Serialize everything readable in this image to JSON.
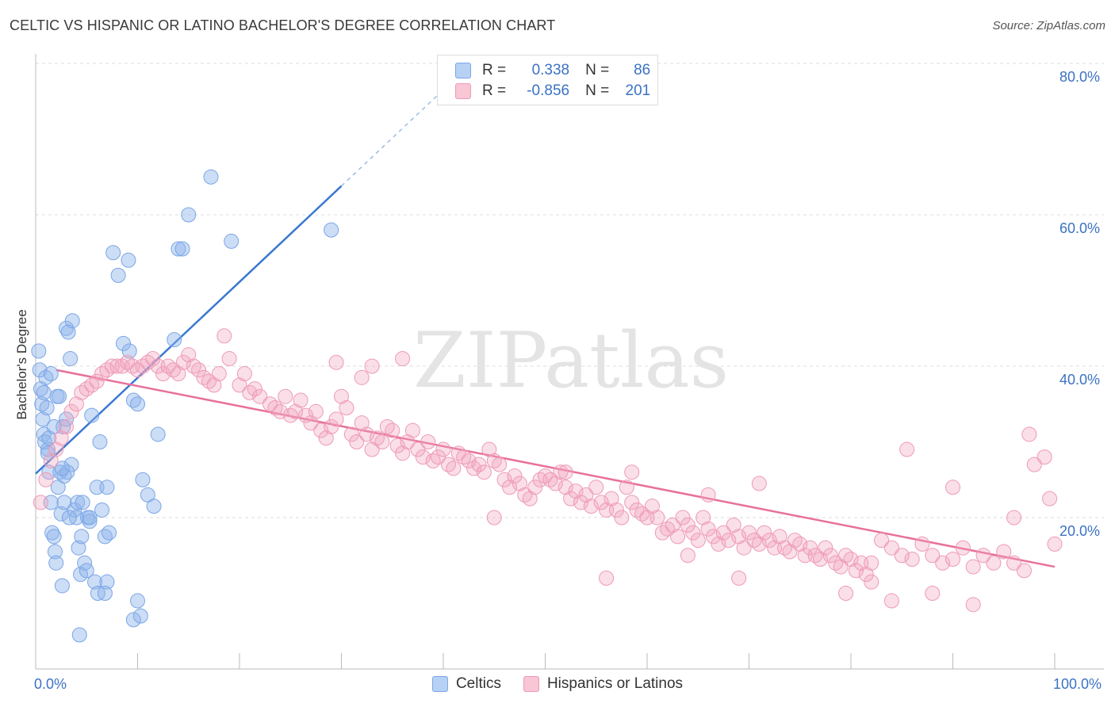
{
  "title": "CELTIC VS HISPANIC OR LATINO BACHELOR'S DEGREE CORRELATION CHART",
  "source": "Source: ZipAtlas.com",
  "watermark": "ZIPatlas",
  "legend": {
    "rows": [
      {
        "r_label": "R =",
        "r_value": "0.338",
        "n_label": "N =",
        "n_value": "86",
        "color": "#6f9fe0"
      },
      {
        "r_label": "R =",
        "r_value": "-0.856",
        "n_label": "N =",
        "n_value": "201",
        "color": "#ee8fae"
      }
    ]
  },
  "bottom_legend": [
    "Celtics",
    "Hispanics or Latinos"
  ],
  "chart_data": {
    "type": "scatter",
    "title": "CELTIC VS HISPANIC OR LATINO BACHELOR'S DEGREE CORRELATION CHART",
    "xlabel": "",
    "ylabel": "Bachelor's Degree",
    "xlim": [
      0,
      100
    ],
    "ylim": [
      0,
      85
    ],
    "x_tick_labels": [
      "0.0%",
      "100.0%"
    ],
    "y_ticks": [
      20,
      40,
      60,
      80
    ],
    "y_tick_labels": [
      "20.0%",
      "40.0%",
      "60.0%",
      "80.0%"
    ],
    "grid": "horizontal dashed",
    "legend_position": "top-center",
    "series": [
      {
        "name": "Celtics",
        "color": "#8fb4ea",
        "trend": {
          "x": [
            0,
            30
          ],
          "y": [
            25.8,
            63.8
          ],
          "dashed_to": [
            40,
            76.5
          ]
        },
        "points": [
          [
            0.3,
            42
          ],
          [
            0.4,
            39.5
          ],
          [
            0.5,
            37
          ],
          [
            0.6,
            35
          ],
          [
            0.7,
            33
          ],
          [
            0.8,
            31
          ],
          [
            0.9,
            30
          ],
          [
            1,
            38.5
          ],
          [
            1.1,
            34.5
          ],
          [
            1.2,
            29
          ],
          [
            1.3,
            26
          ],
          [
            1.5,
            22
          ],
          [
            1.6,
            18
          ],
          [
            1.8,
            17.5
          ],
          [
            1.9,
            15.5
          ],
          [
            2,
            14
          ],
          [
            2.1,
            36
          ],
          [
            2.2,
            24
          ],
          [
            2.4,
            26
          ],
          [
            2.5,
            20.5
          ],
          [
            2.6,
            11
          ],
          [
            2.8,
            25.5
          ],
          [
            3,
            33
          ],
          [
            3,
            45
          ],
          [
            3.2,
            44.5
          ],
          [
            3.4,
            41
          ],
          [
            3.6,
            46
          ],
          [
            3.8,
            21
          ],
          [
            4,
            20
          ],
          [
            4.2,
            16
          ],
          [
            4.4,
            12.5
          ],
          [
            2.8,
            22
          ],
          [
            3.5,
            27
          ],
          [
            4.5,
            17.5
          ],
          [
            4.8,
            14
          ],
          [
            5,
            13
          ],
          [
            5.1,
            20
          ],
          [
            5.3,
            19.5
          ],
          [
            5.5,
            33.5
          ],
          [
            5.8,
            11.5
          ],
          [
            6,
            24
          ],
          [
            6.3,
            30
          ],
          [
            6.5,
            21
          ],
          [
            6.8,
            17.5
          ],
          [
            7,
            24
          ],
          [
            7.2,
            18
          ],
          [
            1.2,
            28.5
          ],
          [
            0.8,
            36.5
          ],
          [
            1.5,
            39
          ],
          [
            2.3,
            36
          ],
          [
            2.7,
            32
          ],
          [
            3.1,
            26
          ],
          [
            4.1,
            22
          ],
          [
            4.6,
            22
          ],
          [
            5.3,
            20
          ],
          [
            6.1,
            10
          ],
          [
            7,
            11.5
          ],
          [
            4.3,
            4.5
          ],
          [
            9.6,
            6.5
          ],
          [
            10,
            9
          ],
          [
            10.3,
            7
          ],
          [
            7.6,
            55
          ],
          [
            8.1,
            52
          ],
          [
            9.1,
            54
          ],
          [
            8.6,
            43
          ],
          [
            9.2,
            42
          ],
          [
            9.6,
            35.5
          ],
          [
            10,
            35
          ],
          [
            10.5,
            25
          ],
          [
            11,
            23
          ],
          [
            11.6,
            21.5
          ],
          [
            12,
            31
          ],
          [
            13.6,
            43.5
          ],
          [
            14,
            55.5
          ],
          [
            14.4,
            55.5
          ],
          [
            15,
            60
          ],
          [
            17.2,
            65
          ],
          [
            19.2,
            56.5
          ],
          [
            29,
            58
          ],
          [
            1.3,
            30.5
          ],
          [
            1.8,
            32
          ],
          [
            2.6,
            26.5
          ],
          [
            3.3,
            20
          ],
          [
            6.8,
            10
          ]
        ]
      },
      {
        "name": "Hispanics or Latinos",
        "color": "#f2a3bd",
        "trend": {
          "x": [
            2,
            100
          ],
          "y": [
            39.5,
            13.5
          ]
        },
        "points": [
          [
            0.5,
            22
          ],
          [
            1,
            25
          ],
          [
            1.5,
            27.5
          ],
          [
            2,
            29
          ],
          [
            2.5,
            30.5
          ],
          [
            3,
            32
          ],
          [
            3.5,
            34
          ],
          [
            4,
            35
          ],
          [
            4.5,
            36.5
          ],
          [
            5,
            37
          ],
          [
            5.5,
            37.5
          ],
          [
            6,
            38
          ],
          [
            6.5,
            39
          ],
          [
            7,
            39.5
          ],
          [
            7.5,
            40
          ],
          [
            8,
            40
          ],
          [
            8.5,
            40
          ],
          [
            9,
            40.5
          ],
          [
            9.5,
            40
          ],
          [
            10,
            39.5
          ],
          [
            10.5,
            40
          ],
          [
            11,
            40.5
          ],
          [
            11.5,
            41
          ],
          [
            12,
            40
          ],
          [
            12.5,
            39
          ],
          [
            13,
            40
          ],
          [
            13.5,
            39.5
          ],
          [
            14,
            39
          ],
          [
            14.5,
            40.5
          ],
          [
            15,
            41.5
          ],
          [
            15.5,
            40
          ],
          [
            16,
            39.5
          ],
          [
            16.5,
            38.5
          ],
          [
            17,
            38
          ],
          [
            17.5,
            37.5
          ],
          [
            18,
            39
          ],
          [
            18.5,
            44
          ],
          [
            19,
            41
          ],
          [
            20,
            37.5
          ],
          [
            20.5,
            39
          ],
          [
            21,
            36.5
          ],
          [
            21.5,
            37
          ],
          [
            22,
            36
          ],
          [
            23,
            35
          ],
          [
            23.5,
            34.5
          ],
          [
            24,
            34
          ],
          [
            24.5,
            36
          ],
          [
            25,
            33.5
          ],
          [
            25.5,
            34
          ],
          [
            26,
            35.5
          ],
          [
            26.5,
            33.5
          ],
          [
            27,
            32.5
          ],
          [
            27.5,
            34
          ],
          [
            28,
            31.5
          ],
          [
            28.5,
            30.5
          ],
          [
            29,
            32
          ],
          [
            29.5,
            33
          ],
          [
            30,
            36
          ],
          [
            30.5,
            34.5
          ],
          [
            31,
            31
          ],
          [
            31.5,
            30
          ],
          [
            32,
            32.5
          ],
          [
            32.5,
            31
          ],
          [
            33,
            29
          ],
          [
            33.5,
            30.5
          ],
          [
            34,
            30
          ],
          [
            34.5,
            32
          ],
          [
            35,
            31.5
          ],
          [
            35.5,
            29.5
          ],
          [
            36,
            28.5
          ],
          [
            36.5,
            30
          ],
          [
            37,
            31.5
          ],
          [
            37.5,
            29
          ],
          [
            38,
            28
          ],
          [
            38.5,
            30
          ],
          [
            39,
            27.5
          ],
          [
            39.5,
            28
          ],
          [
            40,
            29
          ],
          [
            40.5,
            27
          ],
          [
            41,
            26.5
          ],
          [
            41.5,
            28.5
          ],
          [
            42,
            28
          ],
          [
            42.5,
            27.5
          ],
          [
            43,
            26.5
          ],
          [
            43.5,
            27
          ],
          [
            44,
            26
          ],
          [
            44.5,
            29
          ],
          [
            45,
            27.5
          ],
          [
            45.5,
            27
          ],
          [
            46,
            25
          ],
          [
            46.5,
            24
          ],
          [
            47,
            25.5
          ],
          [
            47.5,
            24.5
          ],
          [
            48,
            23
          ],
          [
            48.5,
            22.5
          ],
          [
            49,
            24
          ],
          [
            49.5,
            25
          ],
          [
            50,
            25.5
          ],
          [
            50.5,
            25
          ],
          [
            51,
            24.5
          ],
          [
            51.5,
            26
          ],
          [
            52,
            24
          ],
          [
            52.5,
            22.5
          ],
          [
            53,
            23.5
          ],
          [
            53.5,
            22
          ],
          [
            54,
            23
          ],
          [
            54.5,
            21.5
          ],
          [
            55,
            24
          ],
          [
            55.5,
            22
          ],
          [
            56,
            21
          ],
          [
            56.5,
            22.5
          ],
          [
            57,
            21
          ],
          [
            57.5,
            20
          ],
          [
            58,
            24
          ],
          [
            58.5,
            22
          ],
          [
            59,
            21
          ],
          [
            59.5,
            20.5
          ],
          [
            60,
            20
          ],
          [
            60.5,
            21.5
          ],
          [
            61,
            20
          ],
          [
            61.5,
            18
          ],
          [
            62,
            18.5
          ],
          [
            62.5,
            19
          ],
          [
            63,
            17.5
          ],
          [
            63.5,
            20
          ],
          [
            64,
            19
          ],
          [
            64.5,
            18
          ],
          [
            65,
            17
          ],
          [
            65.5,
            20
          ],
          [
            66,
            18.5
          ],
          [
            66.5,
            17.5
          ],
          [
            67,
            16.5
          ],
          [
            67.5,
            18
          ],
          [
            68,
            17
          ],
          [
            68.5,
            19
          ],
          [
            69,
            17.5
          ],
          [
            69.5,
            16
          ],
          [
            70,
            18
          ],
          [
            70.5,
            17
          ],
          [
            71,
            16.5
          ],
          [
            71.5,
            18
          ],
          [
            72,
            17
          ],
          [
            72.5,
            16
          ],
          [
            73,
            17.5
          ],
          [
            73.5,
            16
          ],
          [
            74,
            15.5
          ],
          [
            74.5,
            17
          ],
          [
            75,
            16.5
          ],
          [
            75.5,
            15
          ],
          [
            76,
            16
          ],
          [
            76.5,
            15
          ],
          [
            77,
            14.5
          ],
          [
            77.5,
            16
          ],
          [
            78,
            15
          ],
          [
            78.5,
            14
          ],
          [
            79,
            13.5
          ],
          [
            79.5,
            15
          ],
          [
            80,
            14.5
          ],
          [
            80.5,
            13
          ],
          [
            81,
            14
          ],
          [
            81.5,
            12.5
          ],
          [
            82,
            14
          ],
          [
            83,
            17
          ],
          [
            84,
            16
          ],
          [
            85,
            15
          ],
          [
            86,
            14.5
          ],
          [
            87,
            16.5
          ],
          [
            88,
            15
          ],
          [
            89,
            14
          ],
          [
            90,
            14.5
          ],
          [
            91,
            16
          ],
          [
            92,
            13.5
          ],
          [
            93,
            15
          ],
          [
            94,
            14
          ],
          [
            95,
            15.5
          ],
          [
            96,
            14
          ],
          [
            97,
            13
          ],
          [
            98,
            27
          ],
          [
            99,
            28
          ],
          [
            99.5,
            22.5
          ],
          [
            100,
            16.5
          ],
          [
            79.5,
            10
          ],
          [
            82,
            11.5
          ],
          [
            84,
            9
          ],
          [
            88,
            10
          ],
          [
            92,
            8.5
          ],
          [
            96,
            20
          ],
          [
            97.5,
            31
          ],
          [
            90,
            24
          ],
          [
            85.5,
            29
          ],
          [
            66,
            23
          ],
          [
            71,
            24.5
          ],
          [
            64,
            15
          ],
          [
            69,
            12
          ],
          [
            56,
            12
          ],
          [
            45,
            20
          ],
          [
            52,
            26
          ],
          [
            58.5,
            26
          ],
          [
            33,
            40
          ],
          [
            32,
            38.5
          ],
          [
            29.5,
            40.5
          ],
          [
            36,
            41
          ]
        ]
      }
    ]
  }
}
